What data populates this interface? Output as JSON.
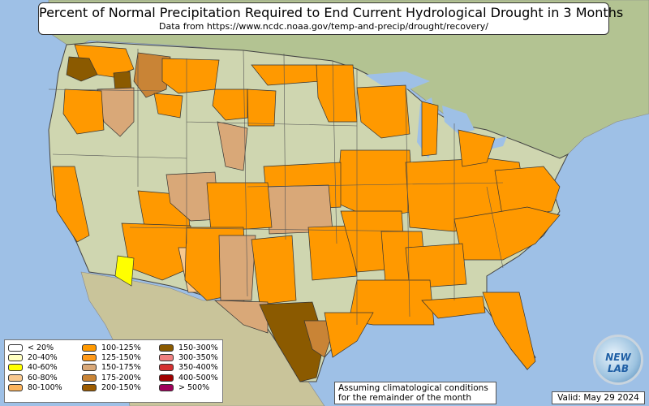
{
  "title": "Percent of Normal Precipitation Required to End Current Hydrological Drought in 3 Months",
  "subtitle": "Data from https://www.ncdc.noaa.gov/temp-and-precip/drought/recovery/",
  "legend": {
    "items": [
      {
        "label": "< 20%",
        "color": "#ffffff"
      },
      {
        "label": "20-40%",
        "color": "#ffffc0"
      },
      {
        "label": "40-60%",
        "color": "#ffff00"
      },
      {
        "label": "60-80%",
        "color": "#f8c98f"
      },
      {
        "label": "80-100%",
        "color": "#fbb35c"
      },
      {
        "label": "100-125%",
        "color": "#ff9900"
      },
      {
        "label": "125-150%",
        "color": "#ff9a1a"
      },
      {
        "label": "150-175%",
        "color": "#d9a878"
      },
      {
        "label": "175-200%",
        "color": "#c98436"
      },
      {
        "label": "200-150%",
        "color": "#9c5b00"
      },
      {
        "label": "150-300%",
        "color": "#8b5a00"
      },
      {
        "label": "300-350%",
        "color": "#f08080"
      },
      {
        "label": "350-400%",
        "color": "#d43030"
      },
      {
        "label": "400-500%",
        "color": "#a00000"
      },
      {
        "label": "> 500%",
        "color": "#a0005a"
      }
    ]
  },
  "note": {
    "line1": "Assuming climatological conditions",
    "line2": "for the remainder of the month"
  },
  "valid": "Valid: May 29 2024",
  "logo": {
    "text": "NEW LAB"
  },
  "colors": {
    "ocean": "#9ec0e6",
    "land": "#c9d2a8",
    "neighbor_land": "#b9c79a",
    "state_border": "#555555"
  }
}
